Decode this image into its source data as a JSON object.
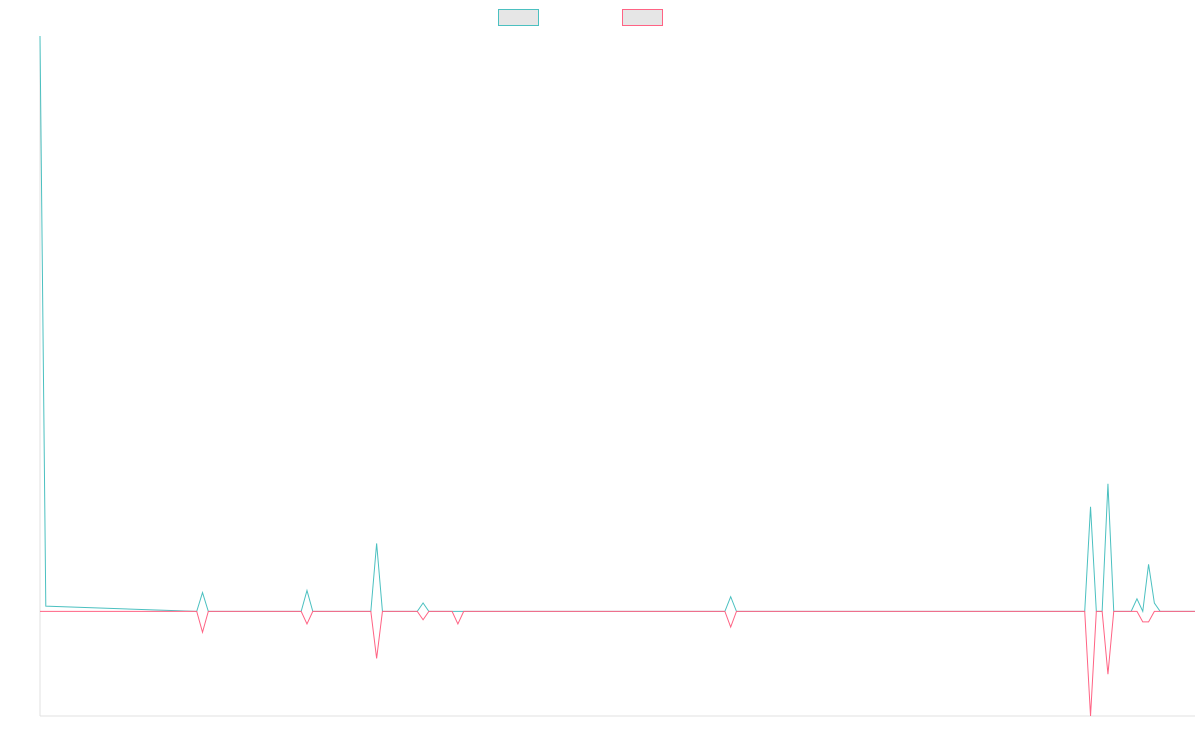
{
  "chart_data": {
    "type": "line",
    "title": "",
    "xlabel": "",
    "ylabel": "",
    "x_count": 200,
    "ylim": [
      -100,
      550
    ],
    "grid": false,
    "legend_placement": "top-center",
    "series": [
      {
        "color": "#4bc0c0",
        "fill": "#e6e6e6",
        "points": [
          [
            0,
            550
          ],
          [
            1,
            5
          ],
          [
            27,
            0
          ],
          [
            28,
            18
          ],
          [
            29,
            0
          ],
          [
            45,
            0
          ],
          [
            46,
            20
          ],
          [
            47,
            0
          ],
          [
            57,
            0
          ],
          [
            58,
            65
          ],
          [
            59,
            0
          ],
          [
            65,
            0
          ],
          [
            66,
            8
          ],
          [
            67,
            0
          ],
          [
            118,
            0
          ],
          [
            119,
            14
          ],
          [
            120,
            0
          ],
          [
            180,
            0
          ],
          [
            181,
            100
          ],
          [
            182,
            0
          ],
          [
            183,
            0
          ],
          [
            184,
            122
          ],
          [
            185,
            0
          ],
          [
            188,
            0
          ],
          [
            189,
            12
          ],
          [
            190,
            0
          ],
          [
            191,
            45
          ],
          [
            192,
            8
          ],
          [
            193,
            0
          ],
          [
            199,
            0
          ]
        ]
      },
      {
        "color": "#ff6384",
        "fill": "#e6e6e6",
        "points": [
          [
            0,
            0
          ],
          [
            27,
            0
          ],
          [
            28,
            -20
          ],
          [
            29,
            0
          ],
          [
            45,
            0
          ],
          [
            46,
            -12
          ],
          [
            47,
            0
          ],
          [
            57,
            0
          ],
          [
            58,
            -45
          ],
          [
            59,
            0
          ],
          [
            65,
            0
          ],
          [
            66,
            -8
          ],
          [
            67,
            0
          ],
          [
            71,
            0
          ],
          [
            72,
            -12
          ],
          [
            73,
            0
          ],
          [
            118,
            0
          ],
          [
            119,
            -15
          ],
          [
            120,
            0
          ],
          [
            180,
            0
          ],
          [
            181,
            -100
          ],
          [
            182,
            0
          ],
          [
            183,
            0
          ],
          [
            184,
            -60
          ],
          [
            185,
            0
          ],
          [
            189,
            0
          ],
          [
            190,
            -10
          ],
          [
            191,
            -10
          ],
          [
            192,
            0
          ],
          [
            199,
            0
          ]
        ]
      }
    ]
  }
}
